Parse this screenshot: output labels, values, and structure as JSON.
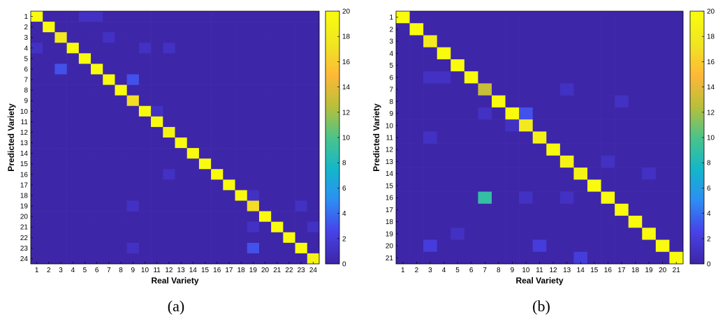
{
  "colors": {
    "background": "#ffffff",
    "axis": "#000000",
    "colormap": [
      "#3e26a8",
      "#4742e8",
      "#2d8ef4",
      "#14b6ca",
      "#4ac48a",
      "#b9bf3a",
      "#feb838",
      "#f0e622",
      "#f9fb0e"
    ]
  },
  "chart_data": [
    {
      "type": "heatmap",
      "panel_label": "(a)",
      "xlabel": "Real Variety",
      "ylabel": "Predicted Variety",
      "categories": [
        "1",
        "2",
        "3",
        "4",
        "5",
        "6",
        "7",
        "8",
        "9",
        "10",
        "11",
        "12",
        "13",
        "14",
        "15",
        "16",
        "17",
        "18",
        "19",
        "20",
        "21",
        "22",
        "23",
        "24"
      ],
      "clim": [
        0,
        20
      ],
      "colorbar_ticks": [
        "0",
        "2",
        "4",
        "6",
        "8",
        "10",
        "12",
        "14",
        "16",
        "18",
        "20"
      ],
      "diagonal": [
        20,
        20,
        18,
        20,
        20,
        20,
        20,
        20,
        17,
        20,
        20,
        19,
        20,
        20,
        20,
        20,
        20,
        20,
        17,
        20,
        20,
        20,
        20,
        19
      ],
      "offdiag": [
        [
          1,
          5,
          1
        ],
        [
          1,
          6,
          1
        ],
        [
          3,
          7,
          1
        ],
        [
          4,
          1,
          1
        ],
        [
          4,
          10,
          1
        ],
        [
          4,
          12,
          1
        ],
        [
          6,
          3,
          3
        ],
        [
          7,
          9,
          3
        ],
        [
          10,
          11,
          1
        ],
        [
          16,
          12,
          1
        ],
        [
          18,
          19,
          1
        ],
        [
          19,
          9,
          1
        ],
        [
          19,
          23,
          1
        ],
        [
          21,
          19,
          1
        ],
        [
          21,
          24,
          1
        ],
        [
          23,
          9,
          1
        ],
        [
          23,
          19,
          3
        ]
      ]
    },
    {
      "type": "heatmap",
      "panel_label": "(b)",
      "xlabel": "Real Variety",
      "ylabel": "Predicted Variety",
      "categories": [
        "1",
        "2",
        "3",
        "4",
        "5",
        "6",
        "7",
        "8",
        "9",
        "10",
        "11",
        "12",
        "13",
        "14",
        "15",
        "16",
        "17",
        "18",
        "19",
        "20",
        "21"
      ],
      "clim": [
        0,
        20
      ],
      "colorbar_ticks": [
        "0",
        "2",
        "4",
        "6",
        "8",
        "10",
        "12",
        "14",
        "16",
        "18",
        "20"
      ],
      "diagonal": [
        20,
        20,
        18,
        20,
        20,
        20,
        13,
        20,
        20,
        18,
        19,
        20,
        19,
        19,
        20,
        20,
        20,
        20,
        20,
        20,
        20
      ],
      "offdiag": [
        [
          6,
          3,
          1
        ],
        [
          6,
          4,
          1
        ],
        [
          7,
          13,
          1
        ],
        [
          8,
          17,
          1
        ],
        [
          9,
          7,
          1
        ],
        [
          9,
          10,
          3
        ],
        [
          10,
          9,
          1
        ],
        [
          11,
          3,
          1
        ],
        [
          13,
          16,
          1
        ],
        [
          14,
          19,
          1
        ],
        [
          16,
          7,
          9
        ],
        [
          16,
          10,
          1
        ],
        [
          16,
          13,
          1
        ],
        [
          19,
          5,
          1
        ],
        [
          20,
          3,
          2
        ],
        [
          20,
          11,
          2
        ],
        [
          21,
          14,
          2
        ]
      ]
    }
  ]
}
